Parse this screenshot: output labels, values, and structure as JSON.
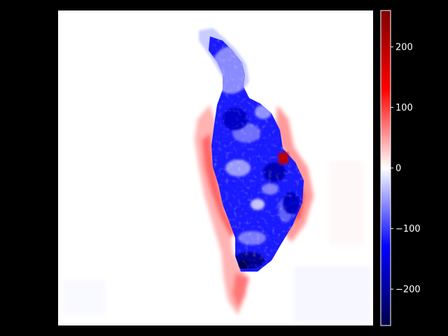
{
  "figure": {
    "background": "#000000",
    "image_background": "#ffffff",
    "colormap": "seismic",
    "colormap_stops": [
      "#00004c",
      "#0000ff",
      "#ffffff",
      "#ff0000",
      "#7f0000"
    ]
  },
  "colorbar": {
    "range": [
      -260,
      260
    ],
    "ticks": [
      {
        "value": 200,
        "label": "200"
      },
      {
        "value": 100,
        "label": "100"
      },
      {
        "value": 0,
        "label": "0"
      },
      {
        "value": -100,
        "label": "−100"
      },
      {
        "value": -200,
        "label": "−200"
      }
    ],
    "tick_color": "#ffffff"
  }
}
